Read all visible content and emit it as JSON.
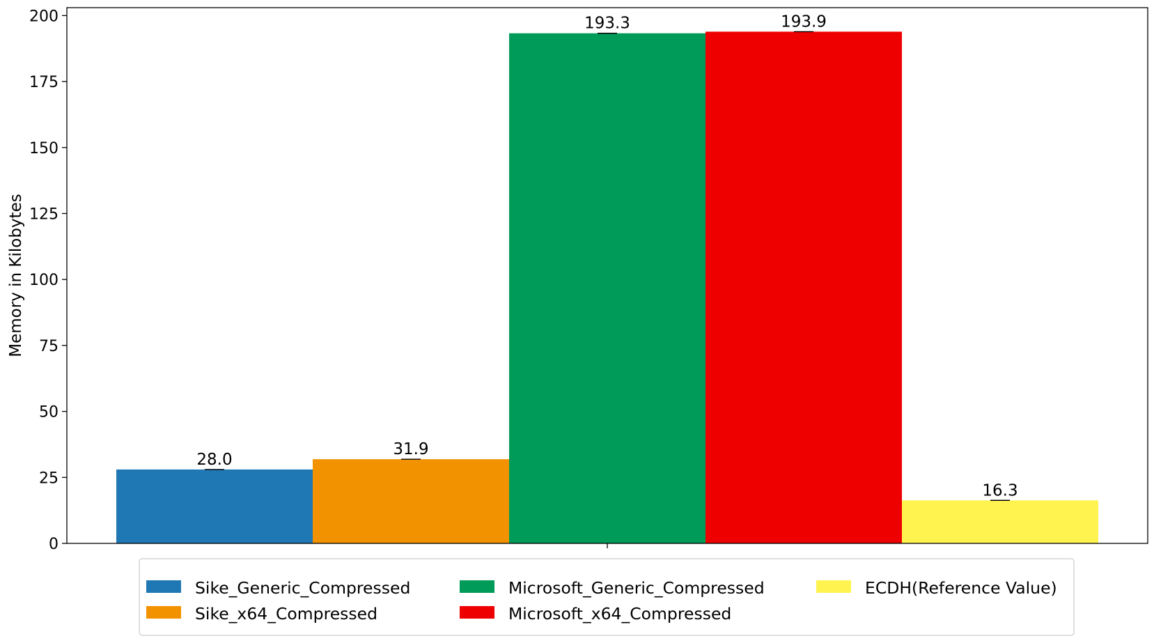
{
  "chart_data": {
    "type": "bar",
    "title": "",
    "xlabel": "",
    "ylabel": "Memory in Kilobytes",
    "ylim": [
      0,
      203
    ],
    "yticks": [
      0,
      25,
      50,
      75,
      100,
      125,
      150,
      175,
      200
    ],
    "grid": false,
    "legend_position": "bottom-center",
    "series": [
      {
        "name": "Sike_Generic_Compressed",
        "value": 28.0,
        "label": "28.0",
        "color": "#1f77b4"
      },
      {
        "name": "Sike_x64_Compressed",
        "value": 31.9,
        "label": "31.9",
        "color": "#f39200"
      },
      {
        "name": "Microsoft_Generic_Compressed",
        "value": 193.3,
        "label": "193.3",
        "color": "#009b58"
      },
      {
        "name": "Microsoft_x64_Compressed",
        "value": 193.9,
        "label": "193.9",
        "color": "#ee0000"
      },
      {
        "name": "ECDH(Reference Value)",
        "value": 16.3,
        "label": "16.3",
        "color": "#fff44f"
      }
    ]
  }
}
